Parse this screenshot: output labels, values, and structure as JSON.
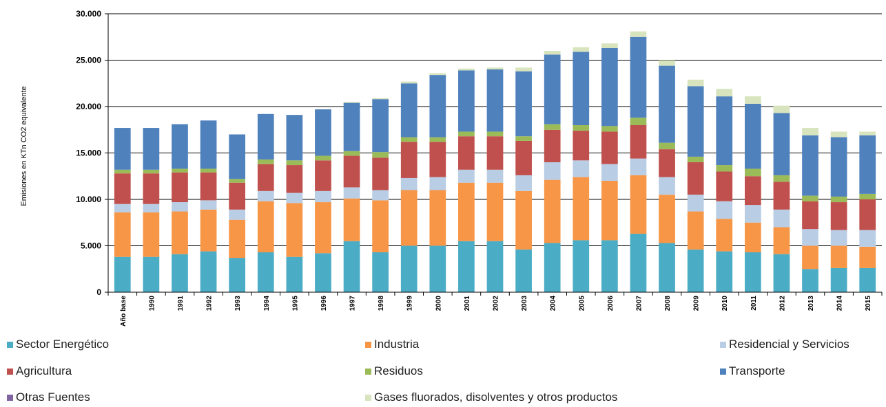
{
  "chart_data": {
    "type": "bar",
    "stacked": true,
    "ylabel": "Emisiones en KTn CO2 equivalente",
    "ylim": [
      0,
      30000
    ],
    "yticks": [
      "0",
      "5.000",
      "10.000",
      "15.000",
      "20.000",
      "25.000",
      "30.000"
    ],
    "ytick_values": [
      0,
      5000,
      10000,
      15000,
      20000,
      25000,
      30000
    ],
    "grid": "horizontal",
    "legend_position": "bottom",
    "categories": [
      "Año base",
      "1990",
      "1991",
      "1992",
      "1993",
      "1994",
      "1995",
      "1996",
      "1997",
      "1998",
      "1999",
      "2000",
      "2001",
      "2002",
      "2003",
      "2004",
      "2005",
      "2006",
      "2007",
      "2008",
      "2009",
      "2010",
      "2011",
      "2012",
      "2013",
      "2014",
      "2015"
    ],
    "series": [
      {
        "name": "Sector Energético",
        "color": "#4bacc6",
        "values": [
          3800,
          3800,
          4100,
          4400,
          3700,
          4300,
          3800,
          4200,
          5500,
          4300,
          5000,
          5000,
          5500,
          5500,
          4600,
          5300,
          5600,
          5600,
          6300,
          5300,
          4600,
          4400,
          4300,
          4100,
          2500,
          2600,
          2600
        ]
      },
      {
        "name": "Industria",
        "color": "#f79646",
        "values": [
          4800,
          4800,
          4600,
          4500,
          4100,
          5500,
          5800,
          5500,
          4600,
          5600,
          6000,
          6000,
          6300,
          6300,
          6300,
          6800,
          6800,
          6400,
          6300,
          5200,
          4100,
          3500,
          3200,
          2900,
          2500,
          2400,
          2300
        ]
      },
      {
        "name": "Residencial y Servicios",
        "color": "#b9cde5",
        "values": [
          900,
          900,
          1000,
          1000,
          1100,
          1100,
          1100,
          1200,
          1200,
          1100,
          1300,
          1400,
          1400,
          1400,
          1700,
          1900,
          1800,
          1800,
          1800,
          1900,
          1800,
          1900,
          1900,
          1900,
          1800,
          1700,
          1800
        ]
      },
      {
        "name": "Agricultura",
        "color": "#c0504d",
        "values": [
          3300,
          3300,
          3200,
          3000,
          2900,
          2900,
          3000,
          3300,
          3400,
          3500,
          3900,
          3800,
          3600,
          3600,
          3700,
          3500,
          3200,
          3500,
          3600,
          3000,
          3500,
          3200,
          3100,
          3000,
          3000,
          3000,
          3300
        ]
      },
      {
        "name": "Residuos",
        "color": "#9bbb59",
        "values": [
          400,
          400,
          400,
          400,
          400,
          500,
          500,
          500,
          500,
          600,
          500,
          500,
          500,
          500,
          500,
          600,
          600,
          600,
          800,
          700,
          600,
          700,
          800,
          700,
          600,
          600,
          600
        ]
      },
      {
        "name": "Transporte",
        "color": "#4f81bd",
        "values": [
          4500,
          4500,
          4800,
          5200,
          4800,
          4900,
          4900,
          5000,
          5200,
          5700,
          5800,
          6700,
          6600,
          6700,
          7000,
          7500,
          7900,
          8400,
          8700,
          8300,
          7600,
          7400,
          7000,
          6700,
          6500,
          6400,
          6300
        ]
      },
      {
        "name": "Otras Fuentes",
        "color": "#8064a2",
        "values": [
          0,
          0,
          0,
          0,
          0,
          0,
          0,
          0,
          0,
          0,
          0,
          0,
          0,
          0,
          0,
          0,
          0,
          0,
          0,
          0,
          0,
          0,
          0,
          0,
          0,
          0,
          0
        ]
      },
      {
        "name": "Gases fluorados, disolventes y otros productos",
        "color": "#d7e4bd",
        "values": [
          0,
          0,
          0,
          0,
          0,
          0,
          0,
          0,
          100,
          100,
          200,
          200,
          200,
          200,
          400,
          400,
          500,
          500,
          600,
          600,
          700,
          800,
          800,
          800,
          800,
          600,
          400
        ]
      }
    ]
  }
}
